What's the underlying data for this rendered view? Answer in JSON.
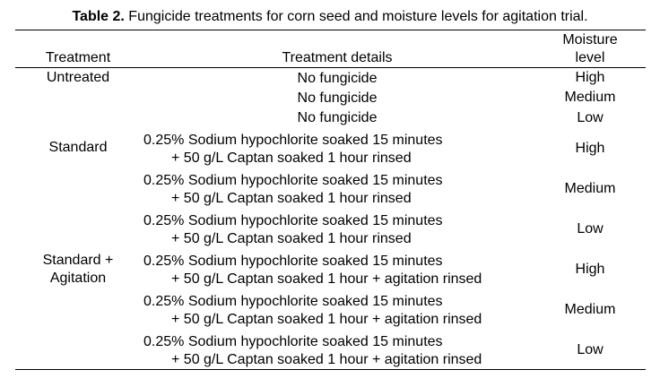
{
  "caption": {
    "label": "Table 2.",
    "text": " Fungicide treatments for corn seed and moisture levels for agitation trial."
  },
  "headers": {
    "treatment": "Treatment",
    "details": "Treatment details",
    "moisture_line1": "Moisture",
    "moisture_line2": "level"
  },
  "groups": [
    {
      "line1": "Untreated",
      "line2": ""
    },
    {
      "line1": "Standard",
      "line2": ""
    },
    {
      "line1": "Standard +",
      "line2": "Agitation"
    }
  ],
  "rows": [
    {
      "detail_line1": "No fungicide",
      "detail_line2": "",
      "moisture": "High"
    },
    {
      "detail_line1": "No fungicide",
      "detail_line2": "",
      "moisture": "Medium"
    },
    {
      "detail_line1": "No fungicide",
      "detail_line2": "",
      "moisture": "Low"
    },
    {
      "detail_line1": "0.25% Sodium hypochlorite soaked 15 minutes",
      "detail_line2": "+ 50 g/L Captan soaked 1 hour rinsed",
      "moisture": "High"
    },
    {
      "detail_line1": "0.25% Sodium hypochlorite soaked 15 minutes",
      "detail_line2": "+ 50 g/L Captan soaked 1 hour rinsed",
      "moisture": "Medium"
    },
    {
      "detail_line1": "0.25% Sodium hypochlorite soaked 15 minutes",
      "detail_line2": "+ 50 g/L Captan soaked 1 hour rinsed",
      "moisture": "Low"
    },
    {
      "detail_line1": "0.25% Sodium hypochlorite soaked 15 minutes",
      "detail_line2": "+ 50 g/L Captan soaked 1 hour + agitation rinsed",
      "moisture": "High"
    },
    {
      "detail_line1": "0.25% Sodium hypochlorite soaked 15 minutes",
      "detail_line2": "+ 50 g/L Captan soaked 1 hour + agitation rinsed",
      "moisture": "Medium"
    },
    {
      "detail_line1": "0.25% Sodium hypochlorite soaked 15 minutes",
      "detail_line2": "+ 50 g/L Captan soaked 1 hour + agitation rinsed",
      "moisture": "Low"
    }
  ]
}
